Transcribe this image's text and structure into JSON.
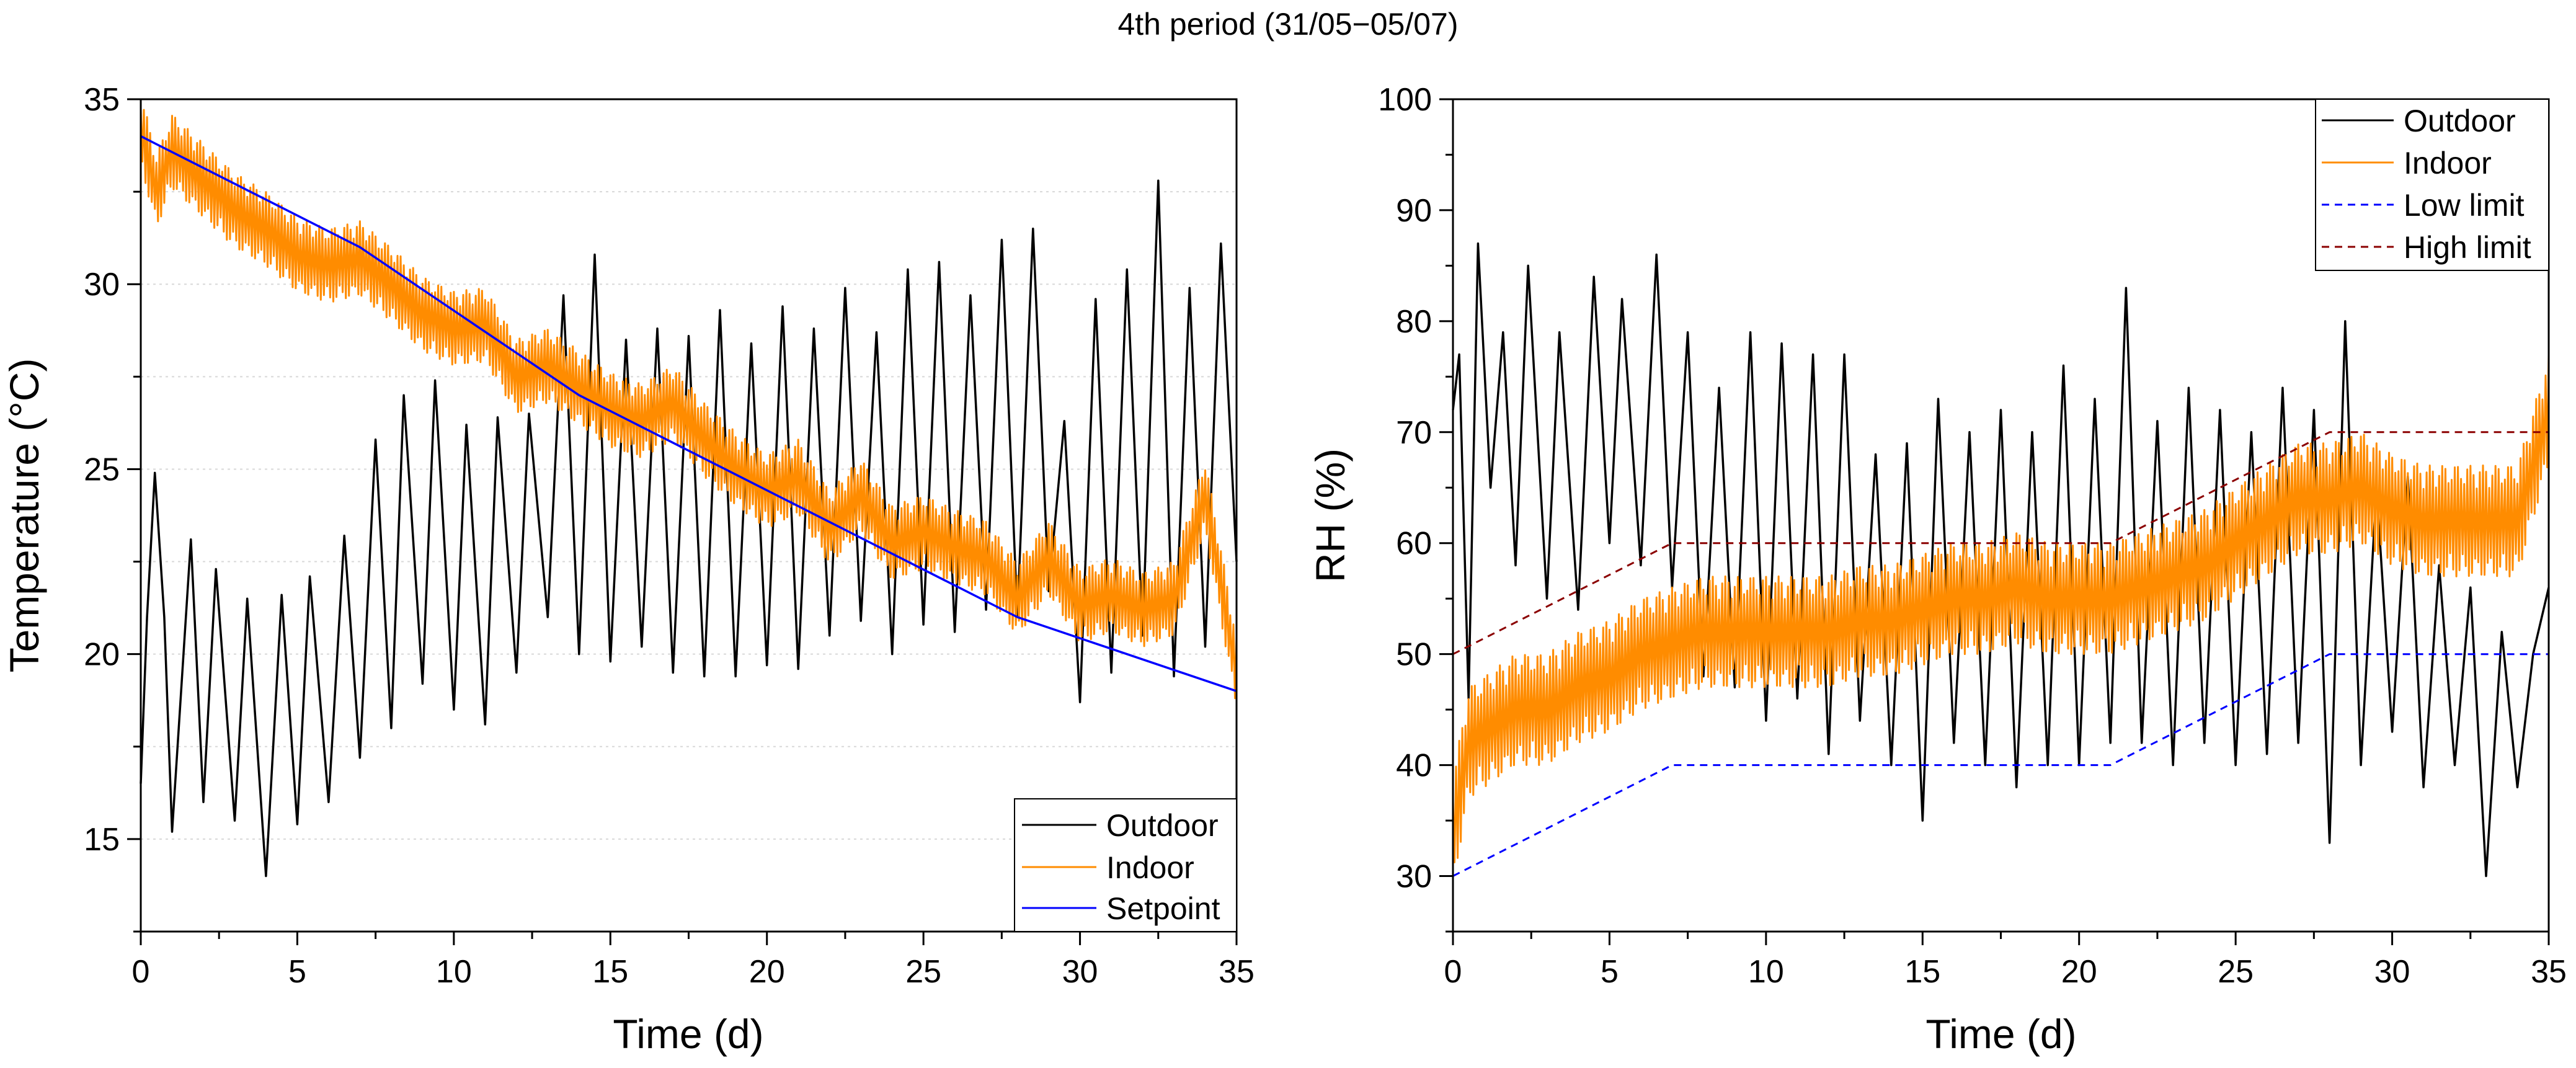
{
  "figure": {
    "title": "4th period (31/05−05/07)"
  },
  "chart_data": [
    {
      "type": "line",
      "xlabel": "Time (d)",
      "ylabel": "Temperature (°C)",
      "xlim": [
        0,
        35
      ],
      "ylim": [
        12.5,
        35
      ],
      "xticks": [
        0,
        5,
        10,
        15,
        20,
        25,
        30,
        35
      ],
      "xtick_labels": [
        "0",
        "5",
        "10",
        "15",
        "20",
        "25",
        "30",
        "35"
      ],
      "yticks": [
        15,
        20,
        25,
        30,
        35
      ],
      "ytick_labels": [
        "15",
        "20",
        "25",
        "30",
        "35"
      ],
      "grid": "dotted horizontal",
      "legend_position": "bottom-right",
      "series": [
        {
          "name": "Outdoor",
          "color": "#000000",
          "style": "solid",
          "x": [
            0,
            0.2,
            0.45,
            0.75,
            1.0,
            1.6,
            2.0,
            2.4,
            3.0,
            3.4,
            4.0,
            4.5,
            5.0,
            5.4,
            6.0,
            6.5,
            7.0,
            7.5,
            8.0,
            8.4,
            9.0,
            9.4,
            10.0,
            10.4,
            11.0,
            11.4,
            12.0,
            12.4,
            13.0,
            13.5,
            14.0,
            14.5,
            15.0,
            15.5,
            16.0,
            16.5,
            17.0,
            17.5,
            18.0,
            18.5,
            19.0,
            19.5,
            20.0,
            20.5,
            21.0,
            21.5,
            22.0,
            22.5,
            23.0,
            23.5,
            24.0,
            24.5,
            25.0,
            25.5,
            26.0,
            26.5,
            27.0,
            27.5,
            28.0,
            28.5,
            29.0,
            29.5,
            30.0,
            30.5,
            31.0,
            31.5,
            32.0,
            32.5,
            33.0,
            33.5,
            34.0,
            34.5,
            35.0
          ],
          "y": [
            16.5,
            21.0,
            24.9,
            21.0,
            15.2,
            23.1,
            16.0,
            22.3,
            15.5,
            21.5,
            14.0,
            21.6,
            15.4,
            22.1,
            16.0,
            23.2,
            17.2,
            25.8,
            18.0,
            27.0,
            19.2,
            27.4,
            18.5,
            26.2,
            18.1,
            26.4,
            19.5,
            26.5,
            21.0,
            29.7,
            20.0,
            30.8,
            19.8,
            28.5,
            20.2,
            28.8,
            19.5,
            28.6,
            19.4,
            29.3,
            19.4,
            28.4,
            19.7,
            29.4,
            19.6,
            28.8,
            20.5,
            29.9,
            20.9,
            28.7,
            20.0,
            30.4,
            20.8,
            30.6,
            20.6,
            29.7,
            21.2,
            31.2,
            21.0,
            31.5,
            21.7,
            26.3,
            18.7,
            29.6,
            19.5,
            30.4,
            20.5,
            32.8,
            19.4,
            29.9,
            20.2,
            31.1,
            22.5
          ]
        },
        {
          "name": "Indoor",
          "color": "#ff8c00",
          "style": "solid",
          "x": [
            0,
            0.5,
            1,
            2,
            3,
            4,
            5,
            6,
            7,
            8,
            9,
            10,
            11,
            12,
            13,
            14,
            15,
            16,
            17,
            18,
            19,
            20,
            21,
            22,
            23,
            24,
            25,
            26,
            27,
            28,
            29,
            30,
            31,
            32,
            33,
            34,
            35
          ],
          "y": [
            34.2,
            32.5,
            33.6,
            32.8,
            32.0,
            31.5,
            30.8,
            30.5,
            30.7,
            30.0,
            29.2,
            28.8,
            28.9,
            27.5,
            27.8,
            27.2,
            26.6,
            26.3,
            26.8,
            25.8,
            25.0,
            24.4,
            24.8,
            23.4,
            24.3,
            23.0,
            23.3,
            22.9,
            22.6,
            21.5,
            22.6,
            21.3,
            21.6,
            21.2,
            21.5,
            24.3,
            19.5
          ],
          "band": 1.0
        },
        {
          "name": "Setpoint",
          "color": "#0000ff",
          "style": "solid",
          "x": [
            0,
            7,
            14,
            21,
            28,
            35
          ],
          "y": [
            34.0,
            31.0,
            27.0,
            24.0,
            21.0,
            19.0
          ]
        }
      ]
    },
    {
      "type": "line",
      "xlabel": "Time (d)",
      "ylabel": "RH (%)",
      "xlim": [
        0,
        35
      ],
      "ylim": [
        25,
        100
      ],
      "xticks": [
        0,
        5,
        10,
        15,
        20,
        25,
        30,
        35
      ],
      "xtick_labels": [
        "0",
        "5",
        "10",
        "15",
        "20",
        "25",
        "30",
        "35"
      ],
      "yticks": [
        30,
        40,
        50,
        60,
        70,
        80,
        90,
        100
      ],
      "ytick_labels": [
        "30",
        "40",
        "50",
        "60",
        "70",
        "80",
        "90",
        "100"
      ],
      "grid": "none",
      "legend_position": "top-right",
      "series": [
        {
          "name": "Outdoor",
          "color": "#000000",
          "style": "solid",
          "x": [
            0,
            0.2,
            0.5,
            0.8,
            1.2,
            1.6,
            2.0,
            2.4,
            3.0,
            3.4,
            4.0,
            4.5,
            5.0,
            5.4,
            6.0,
            6.5,
            7.0,
            7.5,
            8.0,
            8.5,
            9.0,
            9.5,
            10.0,
            10.5,
            11.0,
            11.5,
            12.0,
            12.5,
            13.0,
            13.5,
            14.0,
            14.5,
            15.0,
            15.5,
            16.0,
            16.5,
            17.0,
            17.5,
            18.0,
            18.5,
            19.0,
            19.5,
            20.0,
            20.5,
            21.0,
            21.5,
            22.0,
            22.5,
            23.0,
            23.5,
            24.0,
            24.5,
            25.0,
            25.5,
            26.0,
            26.5,
            27.0,
            27.5,
            28.0,
            28.5,
            29.0,
            29.5,
            30.0,
            30.5,
            31.0,
            31.5,
            32.0,
            32.5,
            33.0,
            33.5,
            34.0,
            34.5,
            35.0
          ],
          "y": [
            72,
            77,
            46,
            87,
            65,
            79,
            58,
            85,
            55,
            79,
            54,
            84,
            60,
            82,
            58,
            86,
            56,
            79,
            48,
            74,
            47,
            79,
            44,
            78,
            46,
            77,
            41,
            77,
            44,
            68,
            40,
            69,
            35,
            73,
            42,
            70,
            40,
            72,
            38,
            70,
            40,
            76,
            40,
            73,
            42,
            83,
            42,
            71,
            40,
            74,
            42,
            72,
            40,
            70,
            41,
            74,
            42,
            72,
            33,
            80,
            40,
            65,
            43,
            66,
            38,
            58,
            40,
            56,
            30,
            52,
            38,
            50,
            56
          ]
        },
        {
          "name": "Indoor",
          "color": "#ff8c00",
          "style": "solid",
          "x": [
            0,
            0.5,
            1,
            2,
            3,
            4,
            5,
            6,
            7,
            8,
            9,
            10,
            11,
            12,
            13,
            14,
            15,
            16,
            17,
            18,
            19,
            20,
            21,
            22,
            23,
            24,
            25,
            26,
            27,
            28,
            29,
            30,
            31,
            32,
            33,
            34,
            35
          ],
          "y": [
            34,
            42,
            43,
            45,
            45,
            47,
            48,
            50,
            51,
            52,
            52,
            52,
            52,
            52,
            53,
            53,
            54,
            55,
            55,
            56,
            55,
            55,
            55,
            56,
            57,
            58,
            60,
            62,
            64,
            64,
            65,
            63,
            62,
            62,
            62,
            62,
            72
          ],
          "band": 5
        },
        {
          "name": "Low limit",
          "color": "#0000ff",
          "style": "dashed",
          "x": [
            0,
            7,
            21,
            28,
            35
          ],
          "y": [
            30,
            40,
            40,
            50,
            50
          ]
        },
        {
          "name": "High limit",
          "color": "#8b0000",
          "style": "dashed",
          "x": [
            0,
            7,
            21,
            28,
            35
          ],
          "y": [
            50,
            60,
            60,
            70,
            70
          ]
        }
      ]
    }
  ]
}
